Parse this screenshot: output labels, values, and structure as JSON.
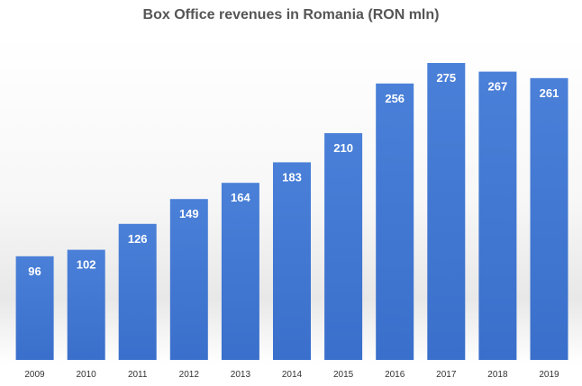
{
  "chart_data": {
    "type": "bar",
    "title": "Box Office revenues in Romania (RON mln)",
    "categories": [
      "2009",
      "2010",
      "2011",
      "2012",
      "2013",
      "2014",
      "2015",
      "2016",
      "2017",
      "2018",
      "2019"
    ],
    "values": [
      96,
      102,
      126,
      149,
      164,
      183,
      210,
      256,
      275,
      267,
      261
    ],
    "xlabel": "",
    "ylabel": "",
    "ylim": [
      0,
      275
    ],
    "grid": false,
    "legend": "none",
    "bar_color": "#3A6FCB",
    "bar_color_light": "#4A80D8",
    "data_labels": true
  }
}
